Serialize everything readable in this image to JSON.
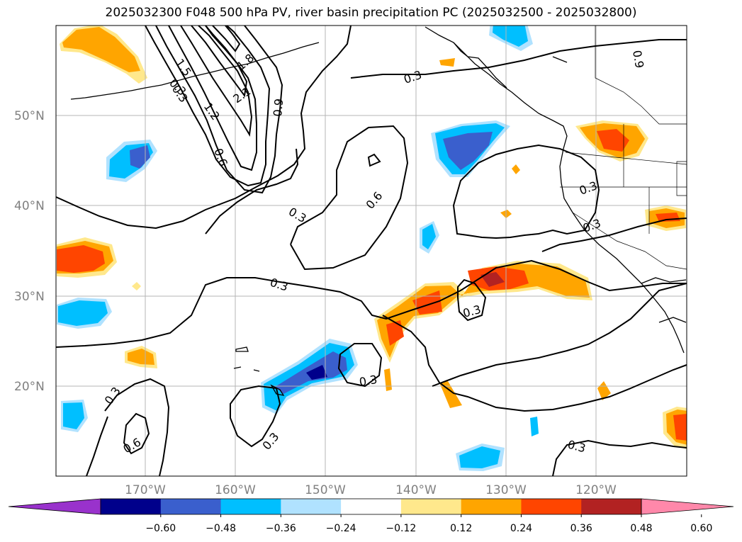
{
  "title": "2025032300 F048 500 hPa PV, river basin precipitation PC (2025032500 - 2025032800)",
  "map": {
    "lat_labels": [
      "50°N",
      "40°N",
      "30°N",
      "20°N"
    ],
    "lon_labels": [
      "170°W",
      "160°W",
      "150°W",
      "140°W",
      "130°W",
      "120°W"
    ],
    "contour_labels": [
      "0.3",
      "0.6",
      "0.9",
      "1.2",
      "1.5",
      "1.8",
      "2.1",
      "0.3",
      "0.6",
      "0.3",
      "0.3",
      "0.3",
      "0.3",
      "0.3",
      "0.3",
      "0.6",
      "0.3",
      "0.3",
      "0.3",
      "0.9",
      "0.3"
    ]
  },
  "colorbar": {
    "ticks": [
      "−0.60",
      "−0.48",
      "−0.36",
      "−0.24",
      "−0.12",
      "0.12",
      "0.24",
      "0.36",
      "0.48",
      "0.60"
    ],
    "colors": [
      "#9932cc",
      "#00008b",
      "#3a5fcd",
      "#00bfff",
      "#b0e2ff",
      "#ffffff",
      "#ffe88c",
      "#ffa500",
      "#ff4500",
      "#b22222",
      "#ff88aa"
    ]
  }
}
